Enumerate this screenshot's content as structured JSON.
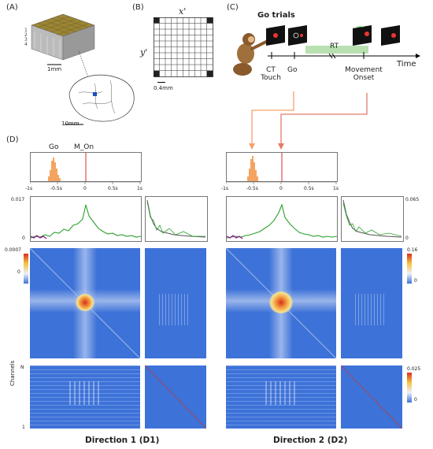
{
  "panels": {
    "a": {
      "label": "(A)",
      "scale_small": "1mm",
      "scale_large": "10mm",
      "depth_ticks": [
        "1",
        "2",
        "3",
        "4",
        "5"
      ]
    },
    "b": {
      "label": "(B)",
      "x_label": "x'",
      "y_label": "y'",
      "scale": "0.4mm"
    },
    "c": {
      "label": "(C)",
      "title": "Go trials",
      "rt": "RT",
      "time": "Time",
      "event_ct": "CT\nTouch",
      "event_go": "Go",
      "event_mo": "Movement\nOnset"
    },
    "d": {
      "label": "(D)",
      "hist_go": "Go",
      "hist_mon": "M_On",
      "time_ticks": [
        "-1s",
        "-0.5s",
        "0",
        "0.5s",
        "1s"
      ],
      "ts_left_max": "0.017",
      "ts_left_min": "0",
      "ts_right_max": "0.065",
      "ts_right_min": "0",
      "cb1_max": "0.0007",
      "cb1_min": "0",
      "cb2_max": "0.16",
      "cb2_min": "0",
      "cb3_max": "0.025",
      "cb3_min": "0",
      "channels_label": "Channels",
      "channels_top": "N",
      "channels_bottom": "1",
      "caption_d1": "Direction 1 (D1)",
      "caption_d2": "Direction 2 (D2)"
    }
  },
  "colors": {
    "heatmap_base": "#3d72d8",
    "hot": "#d7301f",
    "warm": "#f4c542",
    "trace_green": "#2ca02c",
    "trace_purple": "#8b1a8b",
    "go_hist": "#f4a460",
    "marker_red": "#e05050",
    "arrow_orange": "#f6a16b"
  }
}
